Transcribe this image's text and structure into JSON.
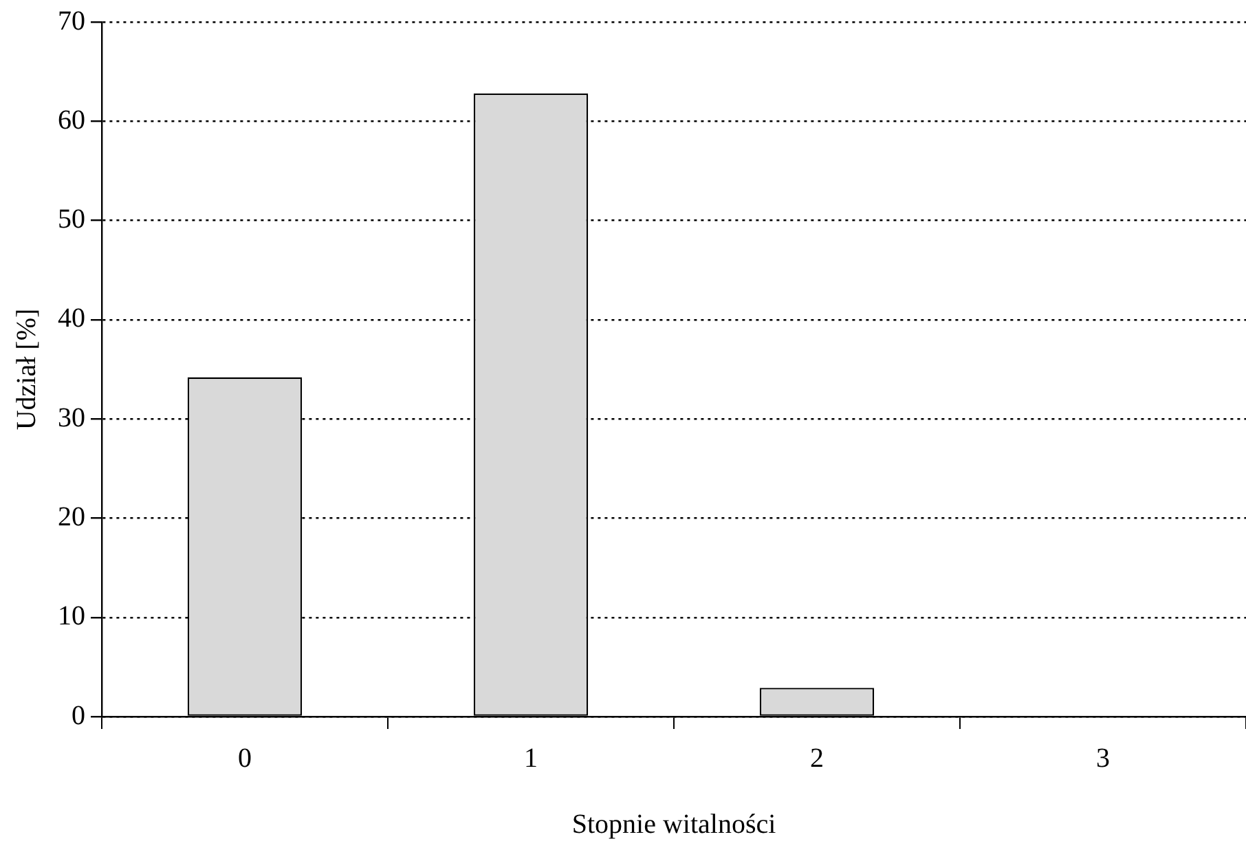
{
  "chart_data": {
    "type": "bar",
    "xlabel": "Stopnie witalności",
    "ylabel": "Udział [%]",
    "categories": [
      "0",
      "1",
      "2",
      "3"
    ],
    "values": [
      34.2,
      62.8,
      2.9,
      0
    ],
    "color": "#d9d9d9",
    "ylim": [
      0,
      70
    ],
    "yticks": [
      0,
      10,
      20,
      30,
      40,
      50,
      60,
      70
    ],
    "grid": "y",
    "legend": false
  }
}
